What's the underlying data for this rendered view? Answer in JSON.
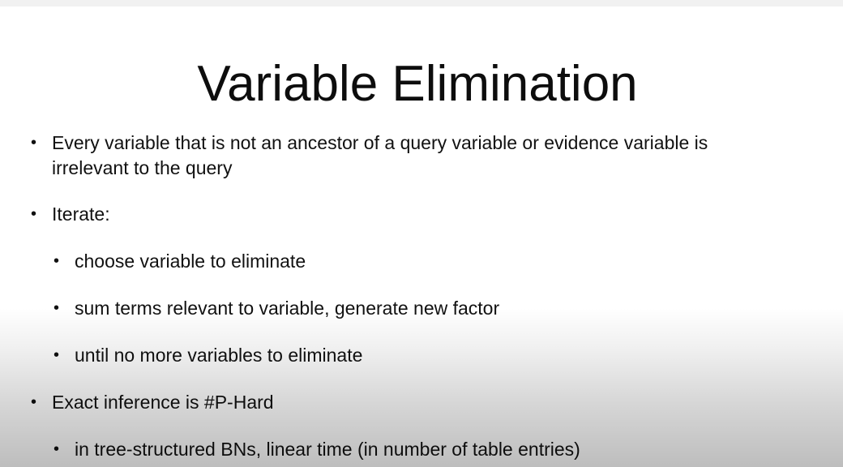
{
  "slide": {
    "title": "Variable Elimination",
    "bullets": [
      {
        "level": 1,
        "lines": [
          "Every variable that is not an ancestor of a query variable or evidence variable is",
          "irrelevant to the query"
        ]
      },
      {
        "level": 1,
        "lines": [
          "Iterate:"
        ]
      },
      {
        "level": 2,
        "lines": [
          "choose variable to eliminate"
        ]
      },
      {
        "level": 2,
        "lines": [
          "sum terms relevant to variable, generate new factor"
        ]
      },
      {
        "level": 2,
        "lines": [
          "until no more variables to eliminate"
        ]
      },
      {
        "level": 1,
        "lines": [
          "Exact inference is #P-Hard"
        ]
      },
      {
        "level": 2,
        "lines": [
          "in tree-structured BNs, linear time (in number of table entries)"
        ]
      }
    ]
  }
}
